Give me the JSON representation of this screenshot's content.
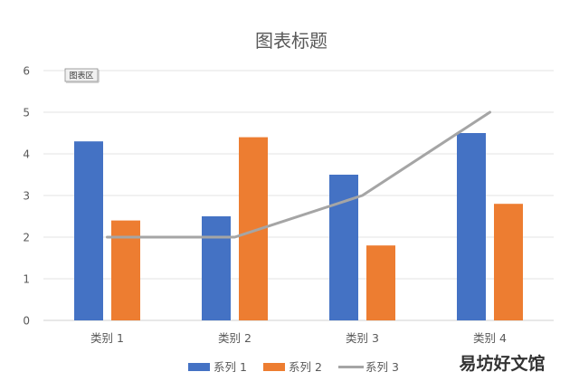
{
  "chart_data": {
    "type": "bar",
    "title": "图表标题",
    "categories": [
      "类别 1",
      "类别 2",
      "类别 3",
      "类别 4"
    ],
    "series": [
      {
        "name": "系列 1",
        "type": "bar",
        "color": "#4472C4",
        "values": [
          4.3,
          2.5,
          3.5,
          4.5
        ]
      },
      {
        "name": "系列 2",
        "type": "bar",
        "color": "#ED7D31",
        "values": [
          2.4,
          4.4,
          1.8,
          2.8
        ]
      },
      {
        "name": "系列 3",
        "type": "line",
        "color": "#A5A5A5",
        "values": [
          2,
          2,
          3,
          5
        ]
      }
    ],
    "ylim": [
      0,
      6
    ],
    "yticks": [
      0,
      1,
      2,
      3,
      4,
      5,
      6
    ],
    "grid": true,
    "legend": "bottom"
  },
  "tooltip": {
    "text": "图表区"
  },
  "watermark": {
    "text": "易坊好文馆"
  }
}
